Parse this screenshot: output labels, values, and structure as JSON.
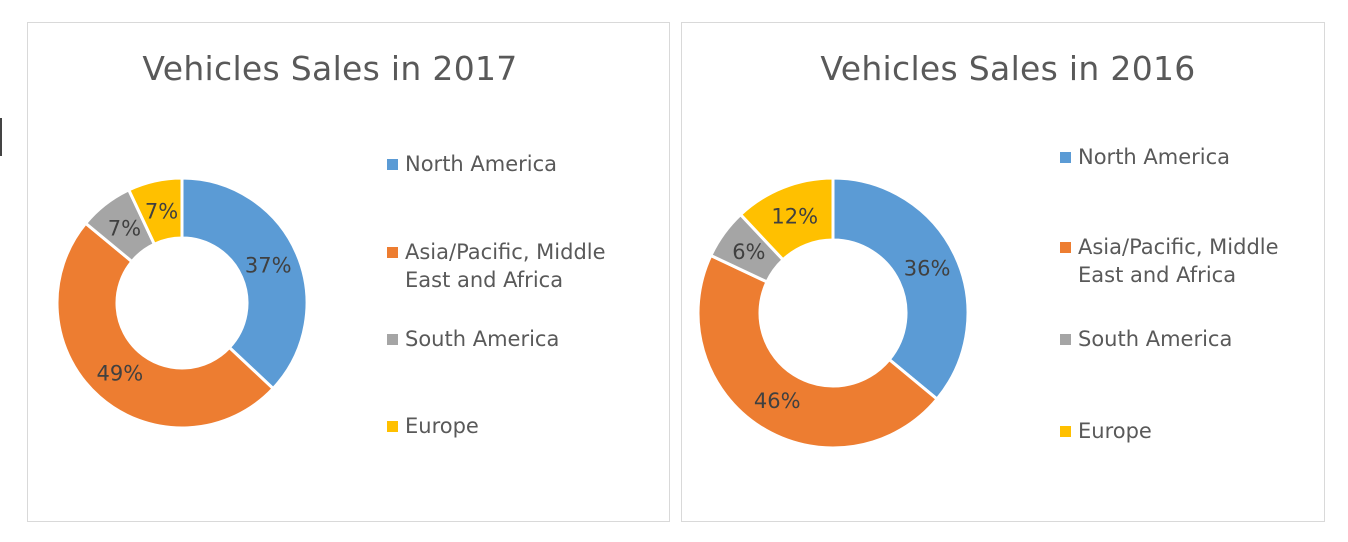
{
  "chart_data": [
    {
      "type": "donut",
      "title": "Vehicles Sales in 2017",
      "categories": [
        "North America",
        "Asia/Pacific, Middle East and Africa",
        "South America",
        "Europe"
      ],
      "values": [
        37,
        49,
        7,
        7
      ],
      "data_labels": [
        "37%",
        "49%",
        "7%",
        "7%"
      ],
      "colors": [
        "#5b9bd5",
        "#ed7d31",
        "#a5a5a5",
        "#ffc000"
      ],
      "legend_position": "right"
    },
    {
      "type": "donut",
      "title": "Vehicles Sales in 2016",
      "categories": [
        "North America",
        "Asia/Pacific, Middle East and Africa",
        "South America",
        "Europe"
      ],
      "values": [
        36,
        46,
        6,
        12
      ],
      "data_labels": [
        "36%",
        "46%",
        "6%",
        "12%"
      ],
      "colors": [
        "#5b9bd5",
        "#ed7d31",
        "#a5a5a5",
        "#ffc000"
      ],
      "legend_position": "right"
    }
  ]
}
